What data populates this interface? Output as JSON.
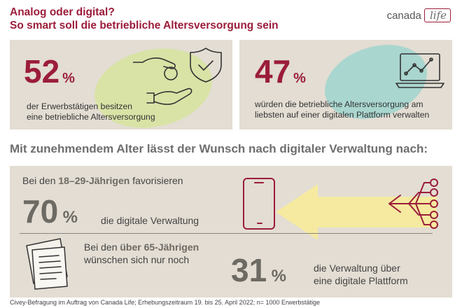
{
  "header": {
    "title_line1": "Analog oder digital?",
    "title_line2": "So smart soll die betriebliche Altersversorgung sein"
  },
  "logo": {
    "text": "canada",
    "text2": "life"
  },
  "stat1": {
    "value": "52",
    "unit": "%",
    "desc1": "der Erwerbstätigen besitzen",
    "desc2": "eine betriebliche Altersversorgung"
  },
  "stat2": {
    "value": "47",
    "unit": "%",
    "desc1": "würden die betriebliche Altersversorgung am",
    "desc2": "liebsten auf einer digitalen Plattform verwalten"
  },
  "headline": "Mit zunehmendem Alter lässt der Wunsch nach digitaler Verwaltung nach:",
  "young": {
    "pre": "Bei den ",
    "group": "18–29-Jährigen",
    "post": " favorisieren",
    "value": "70",
    "unit": "%",
    "desc": "die digitale Verwaltung"
  },
  "old": {
    "pre": "Bei den ",
    "group": "über 65-Jährigen",
    "line2": "wünschen sich nur noch",
    "value": "31",
    "unit": "%",
    "desc1": "die Verwaltung über",
    "desc2": "eine digitale Plattform"
  },
  "footer": "Civey-Befragung im Auftrag von Canada Life; Erhebungszeitraum 19. bis 25. April 2022; n= 1000 Erwerbstätige",
  "colors": {
    "accent": "#9b1d3a",
    "panel": "#e3ddd3",
    "green": "#d9e3a6",
    "teal": "#a9d6cf",
    "yellow": "#f5eaa0"
  }
}
